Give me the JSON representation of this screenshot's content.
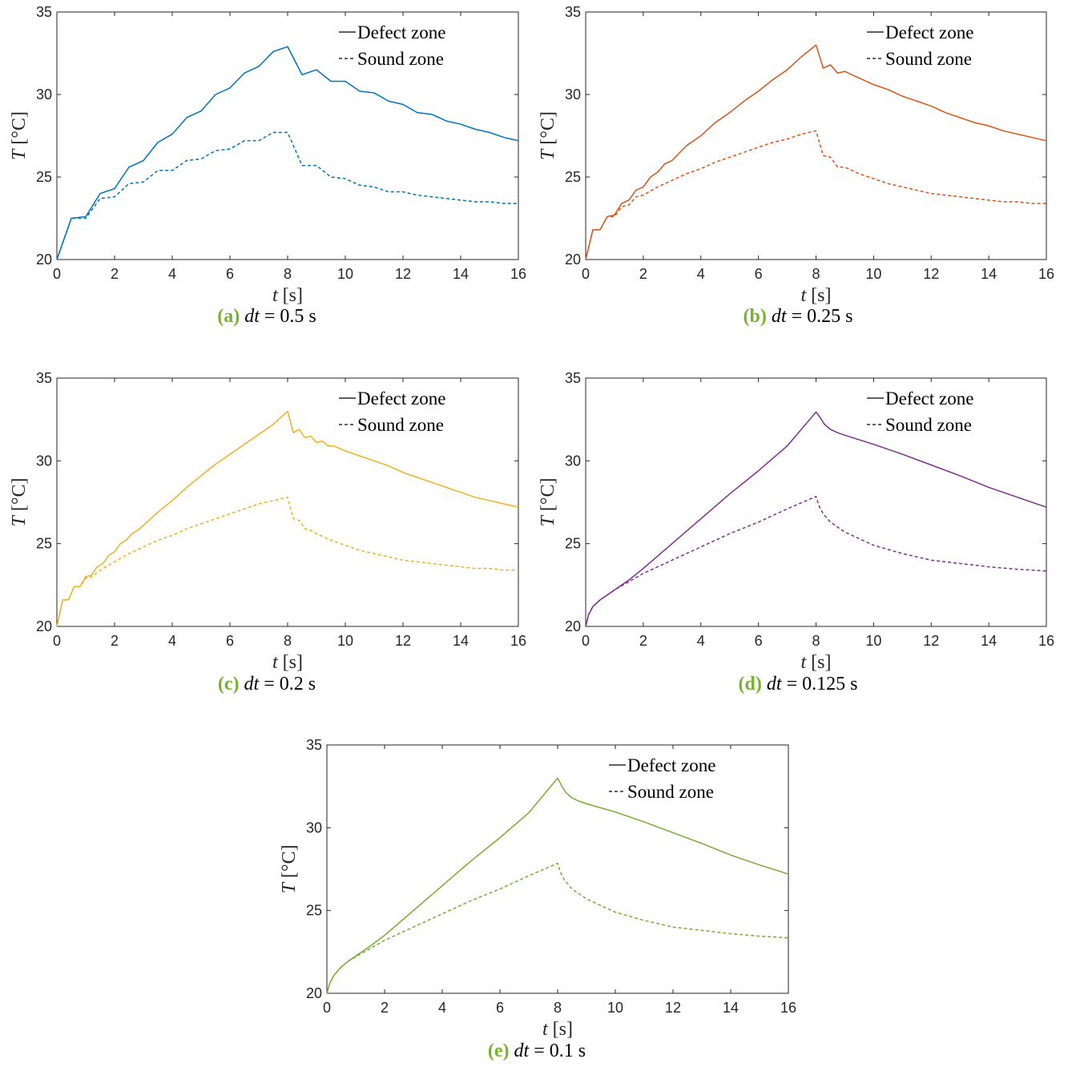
{
  "chart_data": [
    {
      "type": "line",
      "id": "a",
      "caption_label": "(a)",
      "caption_param": "dt",
      "caption_eq": "= 0.5 s",
      "xlabel_var": "t",
      "xlabel_unit": "[s]",
      "ylabel_var": "T",
      "ylabel_unit": "[°C]",
      "xlim": [
        0,
        16
      ],
      "ylim": [
        20,
        35
      ],
      "xticks": [
        "0",
        "2",
        "4",
        "6",
        "8",
        "10",
        "12",
        "14",
        "16"
      ],
      "yticks": [
        "20",
        "25",
        "30",
        "35"
      ],
      "grid": false,
      "legend_position": "top-right",
      "color": "#0072BD",
      "series": [
        {
          "name": "Defect zone",
          "style": "solid",
          "x": [
            0,
            0.5,
            1,
            1.5,
            2,
            2.5,
            3,
            3.5,
            4,
            4.5,
            5,
            5.5,
            6,
            6.5,
            7,
            7.5,
            8,
            8.5,
            9,
            9.5,
            10,
            10.5,
            11,
            11.5,
            12,
            12.5,
            13,
            13.5,
            14,
            14.5,
            15,
            15.5,
            16
          ],
          "y": [
            20.0,
            22.5,
            22.6,
            24.0,
            24.3,
            25.6,
            26.0,
            27.1,
            27.6,
            28.6,
            29.0,
            30.0,
            30.4,
            31.3,
            31.7,
            32.6,
            32.9,
            31.2,
            31.5,
            30.8,
            30.8,
            30.2,
            30.1,
            29.6,
            29.4,
            28.9,
            28.8,
            28.4,
            28.2,
            27.9,
            27.7,
            27.4,
            27.2
          ]
        },
        {
          "name": "Sound zone",
          "style": "dashed",
          "x": [
            0,
            0.5,
            1,
            1.5,
            2,
            2.5,
            3,
            3.5,
            4,
            4.5,
            5,
            5.5,
            6,
            6.5,
            7,
            7.5,
            8,
            8.5,
            9,
            9.5,
            10,
            10.5,
            11,
            11.5,
            12,
            12.5,
            13,
            13.5,
            14,
            14.5,
            15,
            15.5,
            16
          ],
          "y": [
            20.0,
            22.5,
            22.5,
            23.7,
            23.8,
            24.6,
            24.7,
            25.4,
            25.4,
            26.0,
            26.1,
            26.6,
            26.7,
            27.2,
            27.2,
            27.7,
            27.7,
            25.7,
            25.7,
            25.0,
            24.9,
            24.5,
            24.4,
            24.1,
            24.1,
            23.9,
            23.8,
            23.7,
            23.6,
            23.5,
            23.5,
            23.4,
            23.4
          ]
        }
      ]
    },
    {
      "type": "line",
      "id": "b",
      "caption_label": "(b)",
      "caption_param": "dt",
      "caption_eq": "= 0.25 s",
      "xlabel_var": "t",
      "xlabel_unit": "[s]",
      "ylabel_var": "T",
      "ylabel_unit": "[°C]",
      "xlim": [
        0,
        16
      ],
      "ylim": [
        20,
        35
      ],
      "xticks": [
        "0",
        "2",
        "4",
        "6",
        "8",
        "10",
        "12",
        "14",
        "16"
      ],
      "yticks": [
        "20",
        "25",
        "30",
        "35"
      ],
      "grid": false,
      "legend_position": "top-right",
      "color": "#D95319",
      "series": [
        {
          "name": "Defect zone",
          "style": "solid",
          "x": [
            0,
            0.25,
            0.5,
            0.75,
            1,
            1.25,
            1.5,
            1.75,
            2,
            2.25,
            2.5,
            2.75,
            3,
            3.5,
            4,
            4.5,
            5,
            5.5,
            6,
            6.5,
            7,
            7.5,
            8,
            8.25,
            8.5,
            8.75,
            9,
            9.5,
            10,
            10.5,
            11,
            11.5,
            12,
            12.5,
            13,
            13.5,
            14,
            14.5,
            15,
            15.5,
            16
          ],
          "y": [
            20.0,
            21.8,
            21.8,
            22.6,
            22.7,
            23.4,
            23.6,
            24.2,
            24.4,
            25.0,
            25.3,
            25.8,
            26.0,
            26.9,
            27.5,
            28.3,
            28.9,
            29.6,
            30.2,
            30.9,
            31.5,
            32.3,
            33.0,
            31.6,
            31.8,
            31.3,
            31.4,
            31.0,
            30.6,
            30.3,
            29.9,
            29.6,
            29.3,
            28.9,
            28.6,
            28.3,
            28.1,
            27.8,
            27.6,
            27.4,
            27.2
          ]
        },
        {
          "name": "Sound zone",
          "style": "dashed",
          "x": [
            0,
            0.25,
            0.5,
            0.75,
            1,
            1.25,
            1.5,
            1.75,
            2,
            2.5,
            3,
            3.5,
            4,
            4.5,
            5,
            5.5,
            6,
            6.5,
            7,
            7.5,
            8,
            8.25,
            8.5,
            8.75,
            9,
            9.5,
            10,
            10.5,
            11,
            11.5,
            12,
            12.5,
            13,
            13.5,
            14,
            14.5,
            15,
            15.5,
            16
          ],
          "y": [
            20.0,
            21.8,
            21.8,
            22.6,
            22.6,
            23.2,
            23.3,
            23.8,
            23.9,
            24.4,
            24.8,
            25.2,
            25.5,
            25.9,
            26.2,
            26.5,
            26.8,
            27.1,
            27.3,
            27.6,
            27.8,
            26.3,
            26.2,
            25.6,
            25.6,
            25.2,
            24.9,
            24.6,
            24.4,
            24.2,
            24.0,
            23.9,
            23.8,
            23.7,
            23.6,
            23.5,
            23.5,
            23.4,
            23.4
          ]
        }
      ]
    },
    {
      "type": "line",
      "id": "c",
      "caption_label": "(c)",
      "caption_param": "dt",
      "caption_eq": "= 0.2 s",
      "xlabel_var": "t",
      "xlabel_unit": "[s]",
      "ylabel_var": "T",
      "ylabel_unit": "[°C]",
      "xlim": [
        0,
        16
      ],
      "ylim": [
        20,
        35
      ],
      "xticks": [
        "0",
        "2",
        "4",
        "6",
        "8",
        "10",
        "12",
        "14",
        "16"
      ],
      "yticks": [
        "20",
        "25",
        "30",
        "35"
      ],
      "grid": false,
      "legend_position": "top-right",
      "color": "#EDB120",
      "series": [
        {
          "name": "Defect zone",
          "style": "solid",
          "x": [
            0,
            0.2,
            0.4,
            0.6,
            0.8,
            1,
            1.2,
            1.4,
            1.6,
            1.8,
            2,
            2.2,
            2.4,
            2.6,
            2.8,
            3,
            3.5,
            4,
            4.5,
            5,
            5.5,
            6,
            6.5,
            7,
            7.5,
            8,
            8.2,
            8.4,
            8.6,
            8.8,
            9,
            9.2,
            9.4,
            9.6,
            10,
            10.5,
            11,
            11.5,
            12,
            12.5,
            13,
            13.5,
            14,
            14.5,
            15,
            15.5,
            16
          ],
          "y": [
            20.0,
            21.6,
            21.6,
            22.4,
            22.4,
            23.0,
            23.1,
            23.6,
            23.8,
            24.3,
            24.5,
            25.0,
            25.2,
            25.6,
            25.8,
            26.1,
            26.9,
            27.6,
            28.4,
            29.1,
            29.8,
            30.4,
            31.0,
            31.6,
            32.2,
            33.0,
            31.7,
            31.9,
            31.4,
            31.5,
            31.1,
            31.2,
            30.9,
            30.9,
            30.6,
            30.3,
            30.0,
            29.7,
            29.3,
            29.0,
            28.7,
            28.4,
            28.1,
            27.8,
            27.6,
            27.4,
            27.2
          ]
        },
        {
          "name": "Sound zone",
          "style": "dashed",
          "x": [
            0,
            0.2,
            0.4,
            0.6,
            0.8,
            1,
            1.2,
            1.6,
            2,
            2.5,
            3,
            3.5,
            4,
            4.5,
            5,
            5.5,
            6,
            6.5,
            7,
            7.5,
            8,
            8.2,
            8.4,
            8.6,
            8.8,
            9,
            9.5,
            10,
            10.5,
            11,
            11.5,
            12,
            12.5,
            13,
            13.5,
            14,
            14.5,
            15,
            15.5,
            16
          ],
          "y": [
            20.0,
            21.6,
            21.6,
            22.4,
            22.4,
            22.9,
            23.0,
            23.5,
            23.9,
            24.4,
            24.8,
            25.2,
            25.5,
            25.9,
            26.2,
            26.5,
            26.8,
            27.1,
            27.4,
            27.6,
            27.8,
            26.5,
            26.4,
            25.9,
            25.8,
            25.6,
            25.2,
            24.9,
            24.6,
            24.4,
            24.2,
            24.0,
            23.9,
            23.8,
            23.7,
            23.6,
            23.5,
            23.5,
            23.4,
            23.4
          ]
        }
      ]
    },
    {
      "type": "line",
      "id": "d",
      "caption_label": "(d)",
      "caption_param": "dt",
      "caption_eq": "= 0.125 s",
      "xlabel_var": "t",
      "xlabel_unit": "[s]",
      "ylabel_var": "T",
      "ylabel_unit": "[°C]",
      "xlim": [
        0,
        16
      ],
      "ylim": [
        20,
        35
      ],
      "xticks": [
        "0",
        "2",
        "4",
        "6",
        "8",
        "10",
        "12",
        "14",
        "16"
      ],
      "yticks": [
        "20",
        "25",
        "30",
        "35"
      ],
      "grid": false,
      "legend_position": "top-right",
      "color": "#7E2F8E",
      "series": [
        {
          "name": "Defect zone",
          "style": "solid",
          "x": [
            0,
            0.1,
            0.25,
            0.5,
            0.75,
            1,
            1.5,
            2,
            3,
            4,
            5,
            6,
            7,
            8,
            8.15,
            8.3,
            8.5,
            8.75,
            9,
            10,
            11,
            12,
            13,
            14,
            15,
            16
          ],
          "y": [
            20.0,
            20.7,
            21.2,
            21.6,
            21.9,
            22.2,
            22.8,
            23.5,
            25.0,
            26.5,
            28.0,
            29.4,
            30.9,
            32.95,
            32.6,
            32.2,
            31.9,
            31.7,
            31.55,
            31.0,
            30.4,
            29.75,
            29.1,
            28.4,
            27.8,
            27.2
          ]
        },
        {
          "name": "Sound zone",
          "style": "dashed",
          "x": [
            0,
            0.1,
            0.25,
            0.5,
            0.75,
            1,
            1.5,
            2,
            3,
            4,
            5,
            6,
            7,
            8,
            8.1,
            8.25,
            8.5,
            8.75,
            9,
            9.5,
            10,
            11,
            12,
            13,
            14,
            15,
            16
          ],
          "y": [
            20.0,
            20.7,
            21.2,
            21.6,
            21.9,
            22.2,
            22.7,
            23.2,
            24.0,
            24.8,
            25.6,
            26.3,
            27.1,
            27.85,
            27.3,
            26.8,
            26.3,
            26.0,
            25.7,
            25.3,
            24.9,
            24.4,
            24.0,
            23.8,
            23.6,
            23.45,
            23.35
          ]
        }
      ]
    },
    {
      "type": "line",
      "id": "e",
      "caption_label": "(e)",
      "caption_param": "dt",
      "caption_eq": "= 0.1 s",
      "xlabel_var": "t",
      "xlabel_unit": "[s]",
      "ylabel_var": "T",
      "ylabel_unit": "[°C]",
      "xlim": [
        0,
        16
      ],
      "ylim": [
        20,
        35
      ],
      "xticks": [
        "0",
        "2",
        "4",
        "6",
        "8",
        "10",
        "12",
        "14",
        "16"
      ],
      "yticks": [
        "20",
        "25",
        "30",
        "35"
      ],
      "grid": false,
      "legend_position": "top-right",
      "color": "#77AC30",
      "series": [
        {
          "name": "Defect zone",
          "style": "solid",
          "x": [
            0,
            0.1,
            0.25,
            0.5,
            0.75,
            1,
            1.5,
            2,
            3,
            4,
            5,
            6,
            7,
            8,
            8.15,
            8.3,
            8.5,
            8.75,
            9,
            10,
            11,
            12,
            13,
            14,
            15,
            16
          ],
          "y": [
            20.0,
            20.6,
            21.1,
            21.6,
            21.95,
            22.25,
            22.85,
            23.5,
            25.0,
            26.5,
            28.0,
            29.4,
            30.9,
            33.0,
            32.5,
            32.1,
            31.8,
            31.6,
            31.45,
            30.95,
            30.35,
            29.7,
            29.05,
            28.35,
            27.75,
            27.2
          ]
        },
        {
          "name": "Sound zone",
          "style": "dashed",
          "x": [
            0,
            0.1,
            0.25,
            0.5,
            0.75,
            1,
            1.5,
            2,
            3,
            4,
            5,
            6,
            7,
            8,
            8.1,
            8.25,
            8.5,
            8.75,
            9,
            9.5,
            10,
            11,
            12,
            13,
            14,
            15,
            16
          ],
          "y": [
            20.0,
            20.6,
            21.1,
            21.6,
            21.95,
            22.2,
            22.7,
            23.2,
            24.0,
            24.8,
            25.6,
            26.3,
            27.1,
            27.85,
            27.3,
            26.8,
            26.3,
            26.0,
            25.7,
            25.3,
            24.9,
            24.4,
            24.0,
            23.8,
            23.6,
            23.45,
            23.35
          ]
        }
      ]
    }
  ]
}
